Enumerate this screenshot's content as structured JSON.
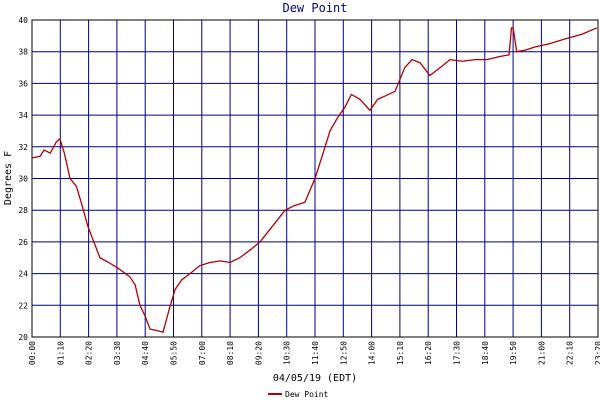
{
  "chart_data": {
    "type": "line",
    "title": "Dew Point",
    "x_label": "04/05/19 (EDT)",
    "y_label": "Degrees F",
    "series": [
      {
        "name": "Dew Point",
        "color": "#b00000",
        "x": [
          0,
          20,
          30,
          45,
          60,
          69,
          80,
          94,
          110,
          125,
          138,
          150,
          168,
          190,
          215,
          242,
          255,
          267,
          280,
          292,
          310,
          324,
          340,
          354,
          370,
          391,
          415,
          440,
          465,
          490,
          514,
          540,
          564,
          595,
          626,
          650,
          675,
          700,
          720,
          737,
          755,
          774,
          790,
          811,
          836,
          855,
          873,
          898,
          922,
          940,
          960,
          984,
          1010,
          1034,
          1065,
          1096,
          1125,
          1157,
          1180,
          1186,
          1190,
          1199,
          1220,
          1244,
          1280,
          1318,
          1360,
          1397
        ],
        "values": [
          31.3,
          31.4,
          31.8,
          31.6,
          32.3,
          32.5,
          31.6,
          30.0,
          29.5,
          28.2,
          27.0,
          26.2,
          25.0,
          24.7,
          24.3,
          23.8,
          23.3,
          22.0,
          21.3,
          20.5,
          20.4,
          20.3,
          21.8,
          23.0,
          23.6,
          24.0,
          24.5,
          24.7,
          24.8,
          24.7,
          25.0,
          25.5,
          26.0,
          27.0,
          28.0,
          28.3,
          28.5,
          30.0,
          31.6,
          33.0,
          33.8,
          34.5,
          35.3,
          35.0,
          34.3,
          35.0,
          35.2,
          35.5,
          37.0,
          37.5,
          37.3,
          36.5,
          37.0,
          37.5,
          37.4,
          37.5,
          37.5,
          37.7,
          37.8,
          39.5,
          39.5,
          38.0,
          38.1,
          38.3,
          38.5,
          38.8,
          39.1,
          39.5
        ]
      }
    ],
    "xlim": [
      0,
      1400
    ],
    "xticks": [
      {
        "value": 0,
        "label": "00:00"
      },
      {
        "value": 70,
        "label": "01:10"
      },
      {
        "value": 140,
        "label": "02:20"
      },
      {
        "value": 210,
        "label": "03:30"
      },
      {
        "value": 280,
        "label": "04:40"
      },
      {
        "value": 350,
        "label": "05:50"
      },
      {
        "value": 420,
        "label": "07:00"
      },
      {
        "value": 490,
        "label": "08:10"
      },
      {
        "value": 560,
        "label": "09:20"
      },
      {
        "value": 630,
        "label": "10:30"
      },
      {
        "value": 700,
        "label": "11:40"
      },
      {
        "value": 770,
        "label": "12:50"
      },
      {
        "value": 840,
        "label": "14:00"
      },
      {
        "value": 910,
        "label": "15:10"
      },
      {
        "value": 980,
        "label": "16:20"
      },
      {
        "value": 1050,
        "label": "17:30"
      },
      {
        "value": 1120,
        "label": "18:40"
      },
      {
        "value": 1190,
        "label": "19:50"
      },
      {
        "value": 1260,
        "label": "21:00"
      },
      {
        "value": 1330,
        "label": "22:10"
      },
      {
        "value": 1400,
        "label": "23:20"
      }
    ],
    "ylim": [
      20,
      40
    ],
    "yticks": [
      20,
      22,
      24,
      26,
      28,
      30,
      32,
      34,
      36,
      38,
      40
    ],
    "grid": true,
    "grid_color": "#000080"
  }
}
